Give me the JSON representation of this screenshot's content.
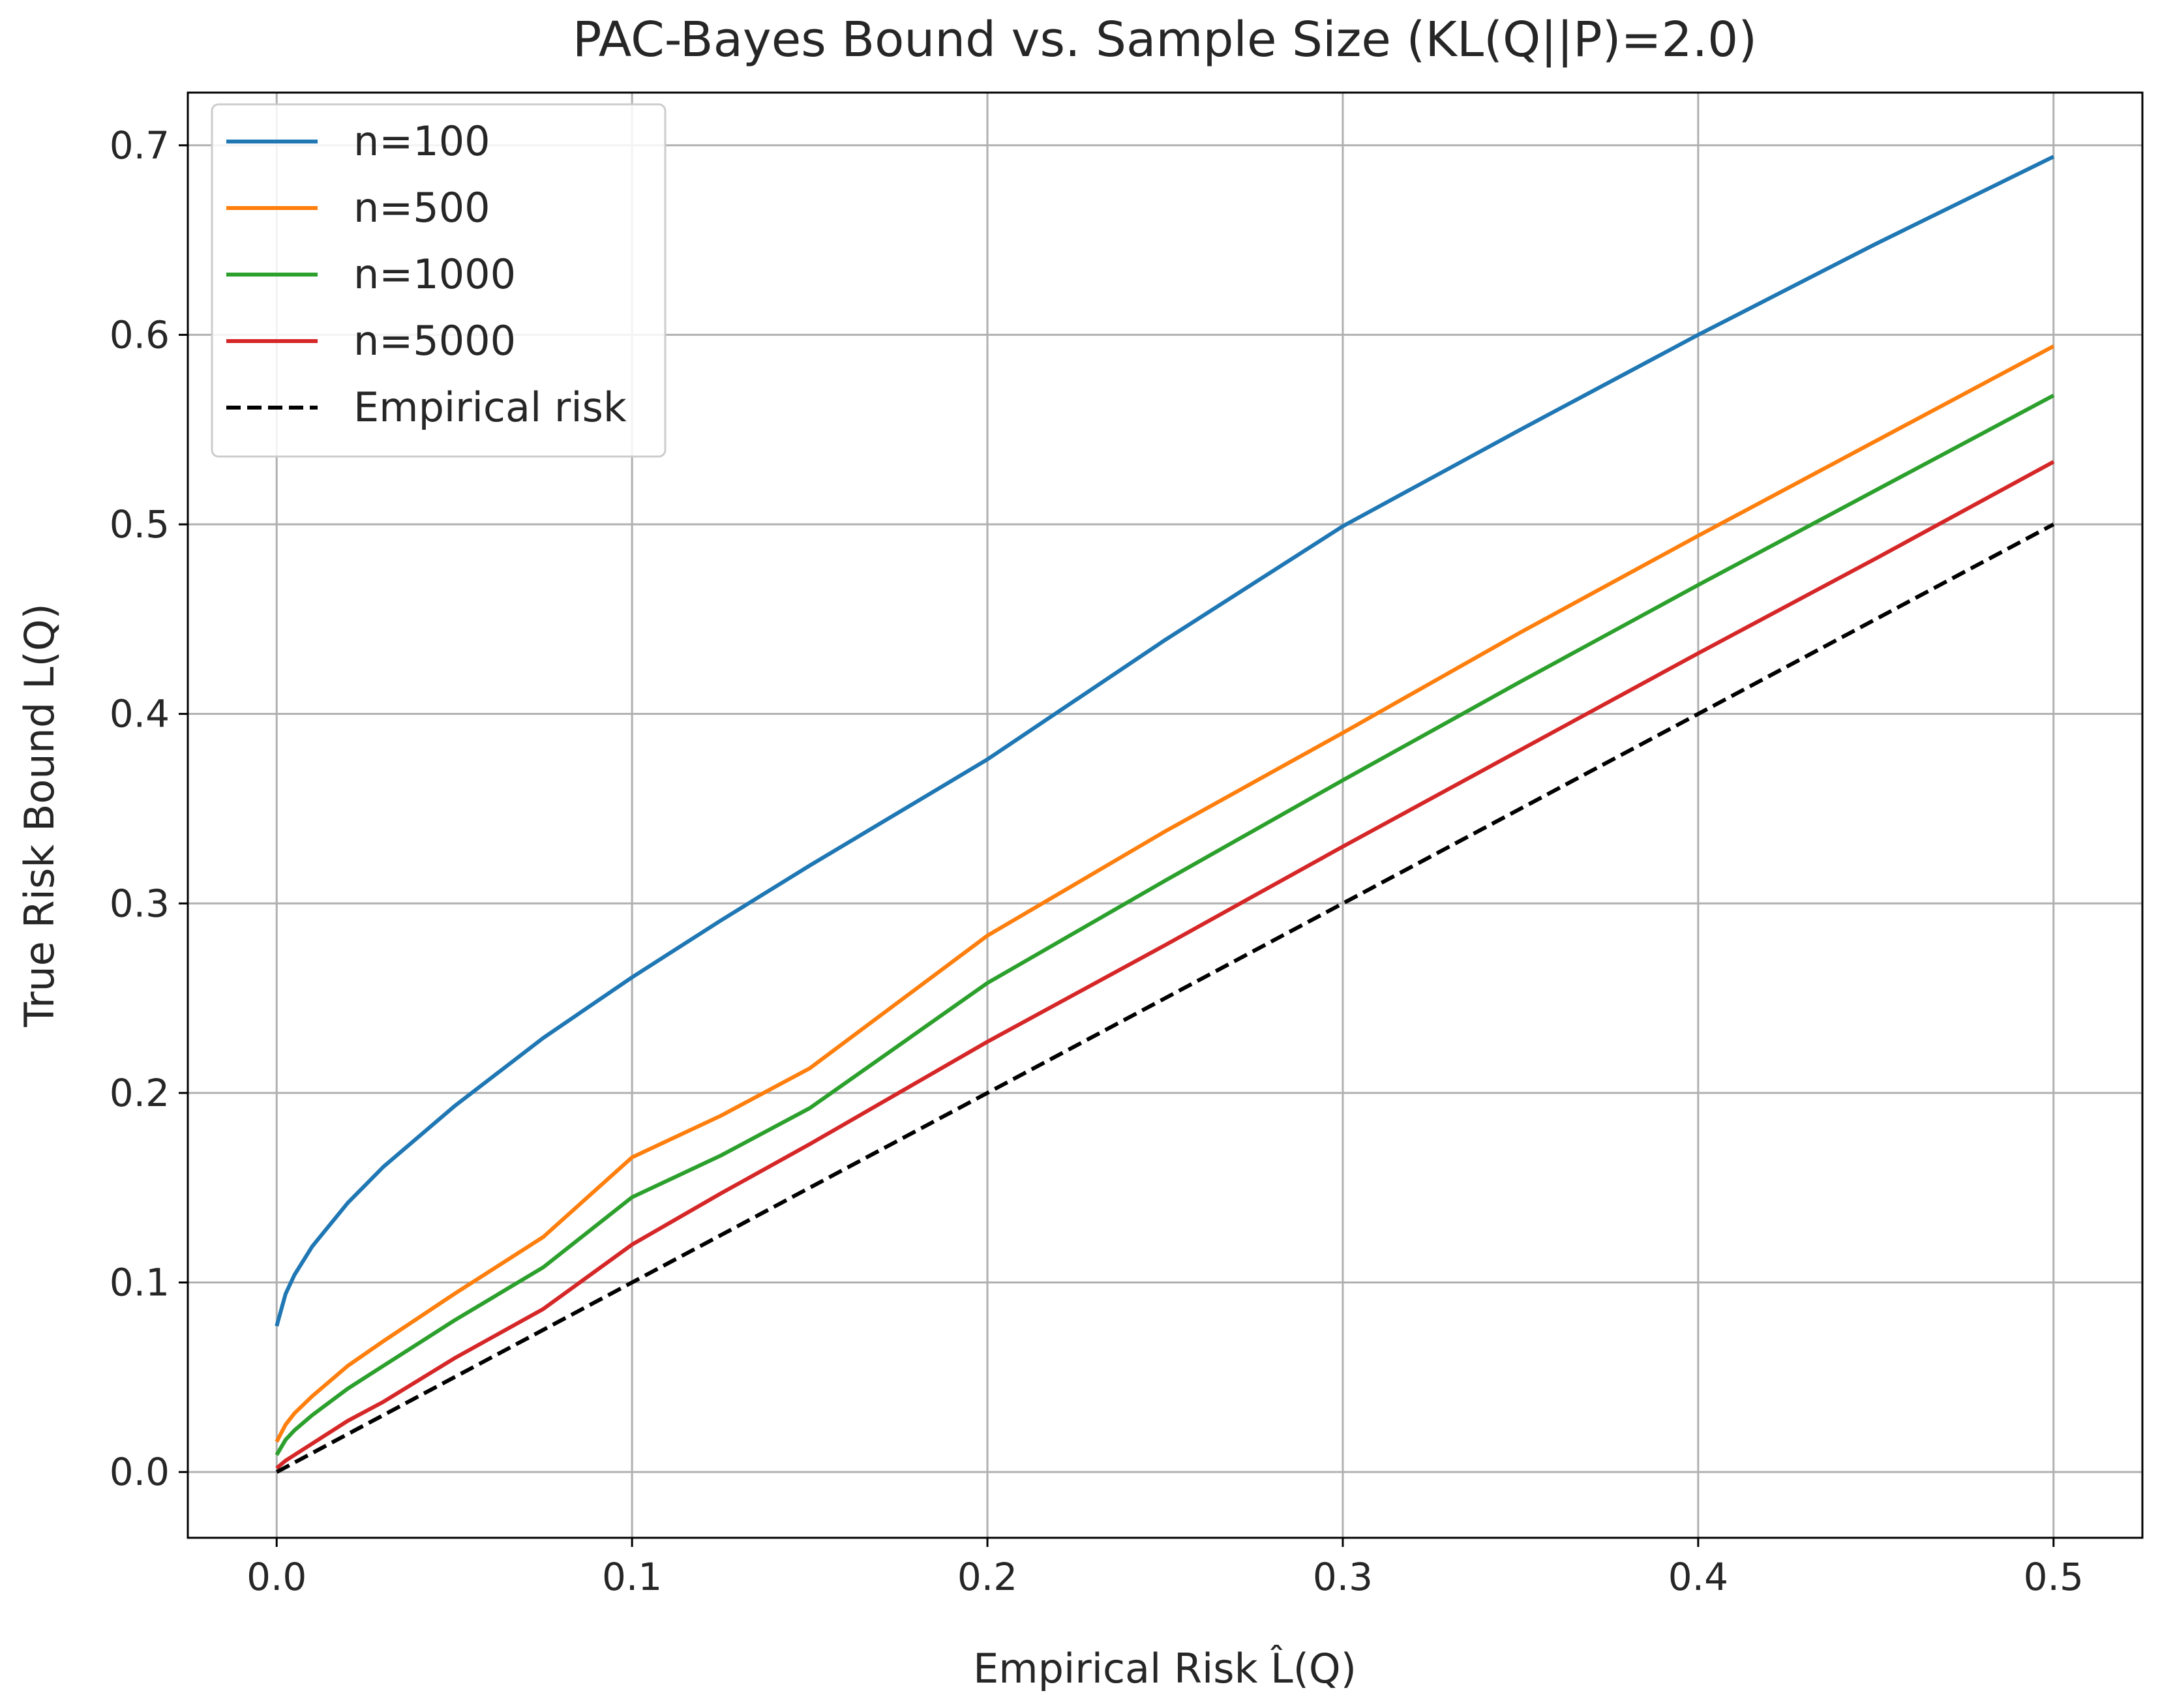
{
  "chart_data": {
    "type": "line",
    "title": "PAC-Bayes Bound vs. Sample Size (KL(Q||P)=2.0)",
    "xlabel": "Empirical Risk L̂(Q)",
    "ylabel": "True Risk Bound L(Q)",
    "xlim": [
      -0.025,
      0.525
    ],
    "ylim": [
      -0.0347,
      0.7278
    ],
    "x_ticks": [
      0.0,
      0.1,
      0.2,
      0.3,
      0.4,
      0.5
    ],
    "x_tick_labels": [
      "0.0",
      "0.1",
      "0.2",
      "0.3",
      "0.4",
      "0.5"
    ],
    "y_ticks": [
      0.0,
      0.1,
      0.2,
      0.3,
      0.4,
      0.5,
      0.6,
      0.7
    ],
    "y_tick_labels": [
      "0.0",
      "0.1",
      "0.2",
      "0.3",
      "0.4",
      "0.5",
      "0.6",
      "0.7"
    ],
    "grid": true,
    "legend_position": "top-left",
    "x": [
      0.0,
      0.0025,
      0.005,
      0.01,
      0.02,
      0.03,
      0.05,
      0.075,
      0.1,
      0.125,
      0.15,
      0.2,
      0.25,
      0.3,
      0.35,
      0.4,
      0.45,
      0.5
    ],
    "series": [
      {
        "name": "n=100",
        "color": "#1f77b4",
        "style": "solid",
        "values": [
          0.077,
          0.094,
          0.104,
          0.119,
          0.142,
          0.161,
          0.193,
          0.229,
          0.261,
          0.291,
          0.32,
          0.376,
          0.439,
          0.499,
          0.55,
          0.6,
          0.648,
          0.694
        ]
      },
      {
        "name": "n=500",
        "color": "#ff7f0e",
        "style": "solid",
        "values": [
          0.016,
          0.025,
          0.031,
          0.04,
          0.056,
          0.069,
          0.094,
          0.124,
          0.166,
          0.188,
          0.213,
          0.283,
          0.338,
          0.39,
          0.443,
          0.494,
          0.544,
          0.594
        ]
      },
      {
        "name": "n=1000",
        "color": "#2ca02c",
        "style": "solid",
        "values": [
          0.009,
          0.017,
          0.022,
          0.03,
          0.044,
          0.056,
          0.08,
          0.108,
          0.145,
          0.167,
          0.192,
          0.258,
          0.312,
          0.365,
          0.417,
          0.468,
          0.518,
          0.568
        ]
      },
      {
        "name": "n=5000",
        "color": "#d62728",
        "style": "solid",
        "values": [
          0.002,
          0.006,
          0.009,
          0.015,
          0.027,
          0.037,
          0.06,
          0.086,
          0.12,
          0.147,
          0.173,
          0.227,
          0.278,
          0.33,
          0.381,
          0.432,
          0.482,
          0.533
        ]
      },
      {
        "name": "Empirical risk",
        "color": "#000000",
        "style": "dashed",
        "values": [
          0.0,
          0.0025,
          0.005,
          0.01,
          0.02,
          0.03,
          0.05,
          0.075,
          0.1,
          0.125,
          0.15,
          0.2,
          0.25,
          0.3,
          0.35,
          0.4,
          0.45,
          0.5
        ]
      }
    ]
  }
}
